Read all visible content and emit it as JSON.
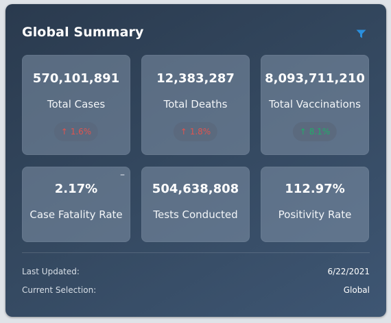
{
  "panel": {
    "title": "Global Summary",
    "filter_icon": "filter-icon",
    "accent_color": "#2a8fdd"
  },
  "cards": [
    {
      "value": "570,101,891",
      "label": "Total Cases",
      "change": "1.6%",
      "trend": "up",
      "trend_color": "#e0544f"
    },
    {
      "value": "12,383,287",
      "label": "Total Deaths",
      "change": "1.8%",
      "trend": "up",
      "trend_color": "#e0544f"
    },
    {
      "value": "8,093,711,210",
      "label": "Total Vaccinations",
      "change": "8.1%",
      "trend": "up",
      "trend_color": "#1fae6a"
    },
    {
      "value": "2.17%",
      "label": "Case Fatality Rate"
    },
    {
      "value": "504,638,808",
      "label": "Tests Conducted"
    },
    {
      "value": "112.97%",
      "label": "Positivity Rate"
    }
  ],
  "collapse_glyph": "–",
  "footer": {
    "last_updated_label": "Last Updated:",
    "last_updated_value": "6/22/2021",
    "selection_label": "Current Selection:",
    "selection_value": "Global"
  }
}
